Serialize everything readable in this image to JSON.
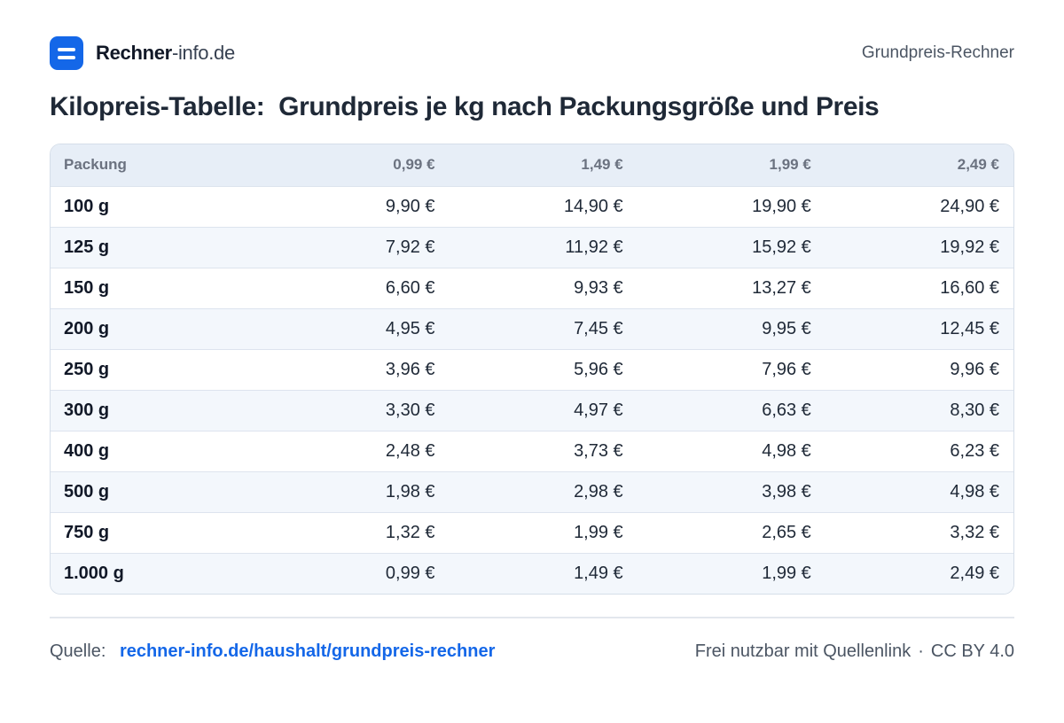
{
  "header": {
    "brand_strong": "Rechner",
    "brand_light": "-info.de",
    "page_label": "Grundpreis-Rechner"
  },
  "title": "Kilopreis-Tabelle:  Grundpreis je kg nach Packungsgröße und Preis",
  "chart_data": {
    "type": "table",
    "title": "Kilopreis-Tabelle:  Grundpreis je kg nach Packungsgröße und Preis",
    "columns": [
      "Packung",
      "0,99 €",
      "1,49 €",
      "1,99 €",
      "2,49 €"
    ],
    "rows": [
      [
        "100 g",
        "9,90 €",
        "14,90 €",
        "19,90 €",
        "24,90 €"
      ],
      [
        "125 g",
        "7,92 €",
        "11,92 €",
        "15,92 €",
        "19,92 €"
      ],
      [
        "150 g",
        "6,60 €",
        "9,93 €",
        "13,27 €",
        "16,60 €"
      ],
      [
        "200 g",
        "4,95 €",
        "7,45 €",
        "9,95 €",
        "12,45 €"
      ],
      [
        "250 g",
        "3,96 €",
        "5,96 €",
        "7,96 €",
        "9,96 €"
      ],
      [
        "300 g",
        "3,30 €",
        "4,97 €",
        "6,63 €",
        "8,30 €"
      ],
      [
        "400 g",
        "2,48 €",
        "3,73 €",
        "4,98 €",
        "6,23 €"
      ],
      [
        "500 g",
        "1,98 €",
        "2,98 €",
        "3,98 €",
        "4,98 €"
      ],
      [
        "750 g",
        "1,32 €",
        "1,99 €",
        "2,65 €",
        "3,32 €"
      ],
      [
        "1.000 g",
        "0,99 €",
        "1,49 €",
        "1,99 €",
        "2,49 €"
      ]
    ]
  },
  "footer": {
    "source_label": "Quelle:",
    "source_link": "rechner-info.de/haushalt/grundpreis-rechner",
    "license_left": "Frei nutzbar mit Quellenlink",
    "license_sep": "·",
    "license_right": "CC BY 4.0"
  },
  "colors": {
    "accent": "#1467e8",
    "header_row": "#e7eef7",
    "zebra_row": "#f3f7fc"
  }
}
